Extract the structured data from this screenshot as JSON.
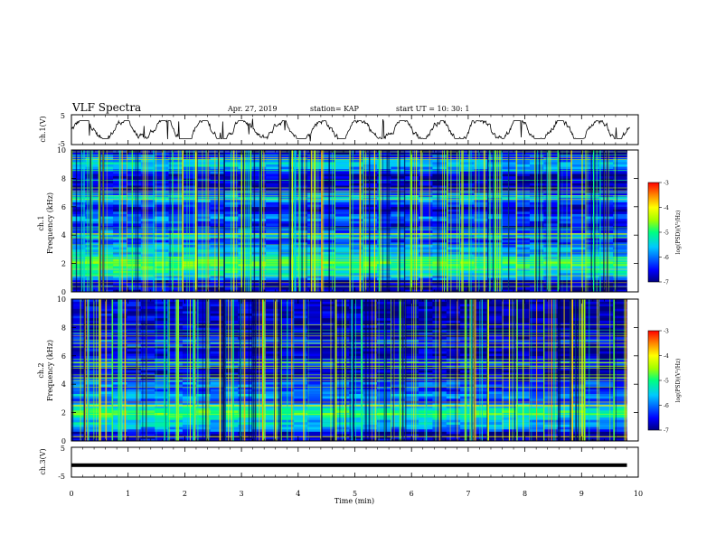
{
  "header": {
    "title": "VLF Spectra",
    "date": "Apr. 27, 2019",
    "station": "station= KAP",
    "start": "start UT =   10: 30: 1"
  },
  "chart_data": [
    {
      "type": "line",
      "ylabel": "ch.1(V)",
      "ylim": [
        -5,
        5
      ],
      "yticks": [
        "5",
        "-5"
      ],
      "xlim": [
        0,
        10
      ],
      "description_of_trace": "noisy waveform roughly between -2 and 2 V",
      "color": "#000000"
    },
    {
      "type": "heatmap",
      "ylabel": "ch.1",
      "ylabel2": "Frequency (kHz)",
      "ylim": [
        0,
        10
      ],
      "yticks": [
        "0",
        "2",
        "4",
        "6",
        "8",
        "10"
      ],
      "xlim": [
        0,
        9.8
      ],
      "colorbar": {
        "label": "log(PSD)(V²/Hz)",
        "ticks": [
          "-3",
          "-4",
          "-5",
          "-6",
          "-7"
        ],
        "range": [
          -7,
          -3
        ]
      },
      "bands_khz": [
        {
          "center": 2.0,
          "level": -4.6
        },
        {
          "center": 1.4,
          "level": -5.1
        },
        {
          "center": 3.0,
          "level": -5.4
        },
        {
          "center": 4.0,
          "level": -5.6
        },
        {
          "center": 5.2,
          "level": -5.7
        },
        {
          "center": 6.6,
          "level": -5.5
        },
        {
          "center": 9.0,
          "level": -5.3
        }
      ]
    },
    {
      "type": "heatmap",
      "ylabel": "ch.2",
      "ylabel2": "Frequency (kHz)",
      "ylim": [
        0,
        10
      ],
      "yticks": [
        "0",
        "2",
        "4",
        "6",
        "8",
        "10"
      ],
      "xlim": [
        0,
        9.8
      ],
      "colorbar": {
        "label": "log(PSD)(V²/Hz)",
        "ticks": [
          "-3",
          "-4",
          "-5",
          "-6",
          "-7"
        ],
        "range": [
          -7,
          -3
        ]
      },
      "bands_khz": [
        {
          "center": 2.0,
          "level": -4.7
        },
        {
          "center": 1.2,
          "level": -5.3
        },
        {
          "center": 3.2,
          "level": -5.6
        },
        {
          "center": 4.0,
          "level": -5.8
        },
        {
          "center": 5.5,
          "level": -6.0
        },
        {
          "center": 7.0,
          "level": -6.0
        }
      ]
    },
    {
      "type": "line",
      "ylabel": "ch.3(V)",
      "ylim": [
        -5,
        5
      ],
      "yticks": [
        "5",
        "-5"
      ],
      "xlim": [
        0,
        10
      ],
      "constant_value": -1,
      "color": "#000000"
    }
  ],
  "xaxis": {
    "label": "Time (min)",
    "ticks": [
      "0",
      "1",
      "2",
      "3",
      "4",
      "5",
      "6",
      "7",
      "8",
      "9",
      "10"
    ],
    "range": [
      0,
      10
    ]
  }
}
